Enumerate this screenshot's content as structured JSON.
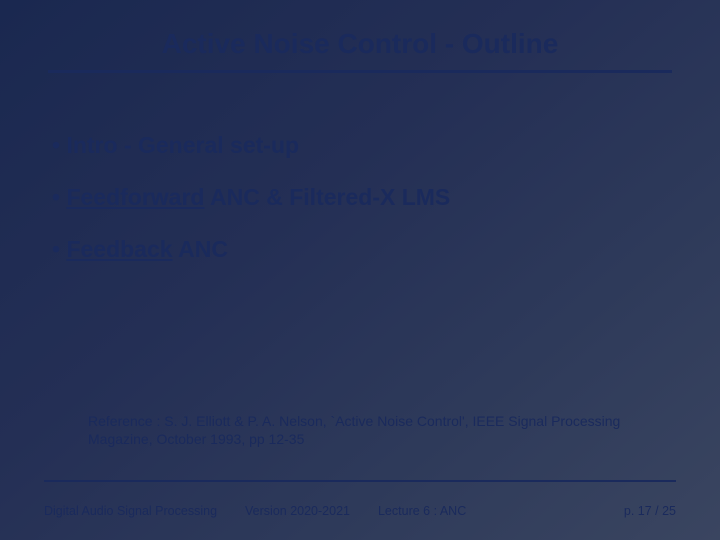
{
  "title": "Active Noise Control - Outline",
  "bullets": [
    {
      "prefix": "",
      "underlined": "",
      "rest": "Intro - General set-up"
    },
    {
      "prefix": "",
      "underlined": "Feedforward",
      "rest": " ANC & Filtered-X LMS"
    },
    {
      "prefix": "",
      "underlined": "Feedback",
      "rest": " ANC"
    }
  ],
  "reference": "Reference : S. J. Elliott & P. A. Nelson, `Active Noise Control', IEEE Signal Processing Magazine, October 1993, pp 12-35",
  "footer": {
    "course": "Digital Audio Signal Processing",
    "version": "Version 2020-2021",
    "lecture": "Lecture 6 : ANC",
    "page": "p. 17 / 25"
  }
}
